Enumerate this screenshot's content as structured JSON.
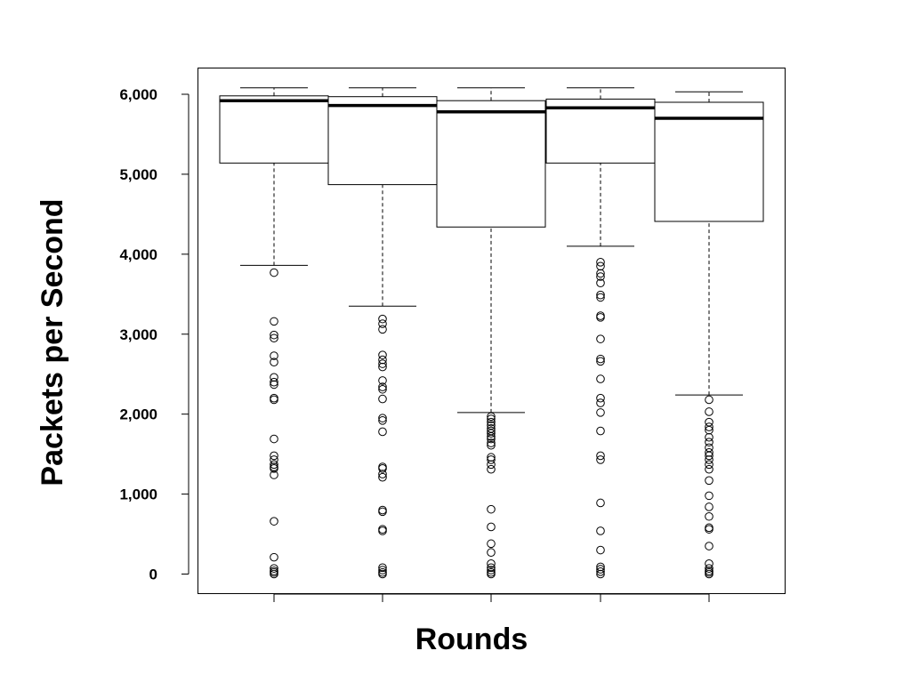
{
  "chart_data": {
    "type": "box",
    "title": "",
    "xlabel": "Rounds",
    "ylabel": "Packets per Second",
    "ylim": [
      -250,
      6350
    ],
    "y_ticks": [
      0,
      1000,
      2000,
      3000,
      4000,
      5000,
      6000
    ],
    "y_tick_labels": [
      "0",
      "1,000",
      "2,000",
      "3,000",
      "4,000",
      "5,000",
      "6,000"
    ],
    "categories": [
      "",
      "",
      "",
      "",
      ""
    ],
    "boxes": [
      {
        "whisker_low": 3860,
        "q1": 5140,
        "median": 5920,
        "q3": 5980,
        "whisker_high": 6080,
        "outliers": [
          3770,
          3160,
          2990,
          2950,
          2730,
          2650,
          2460,
          2400,
          2370,
          2200,
          2180,
          1690,
          1480,
          1430,
          1370,
          1340,
          1320,
          1240,
          660,
          210,
          70,
          40,
          20,
          0
        ]
      },
      {
        "whisker_low": 3350,
        "q1": 4870,
        "median": 5860,
        "q3": 5970,
        "whisker_high": 6080,
        "outliers": [
          3190,
          3130,
          3060,
          2740,
          2680,
          2630,
          2590,
          2420,
          2340,
          2310,
          2190,
          1950,
          1920,
          1780,
          1340,
          1320,
          1250,
          1210,
          800,
          780,
          560,
          540,
          80,
          50,
          20,
          0
        ]
      },
      {
        "whisker_low": 2020,
        "q1": 4340,
        "median": 5780,
        "q3": 5920,
        "whisker_high": 6080,
        "outliers": [
          1970,
          1940,
          1900,
          1860,
          1820,
          1790,
          1760,
          1720,
          1690,
          1640,
          1610,
          1460,
          1430,
          1370,
          1310,
          810,
          590,
          380,
          270,
          130,
          80,
          50,
          20,
          0
        ]
      },
      {
        "whisker_low": 4100,
        "q1": 5140,
        "median": 5830,
        "q3": 5940,
        "whisker_high": 6080,
        "outliers": [
          3900,
          3850,
          3760,
          3720,
          3640,
          3490,
          3460,
          3230,
          3210,
          2940,
          2690,
          2660,
          2440,
          2200,
          2140,
          2020,
          1790,
          1480,
          1430,
          890,
          540,
          300,
          90,
          60,
          30,
          0
        ]
      },
      {
        "whisker_low": 2240,
        "q1": 4410,
        "median": 5700,
        "q3": 5900,
        "whisker_high": 6030,
        "outliers": [
          2180,
          2030,
          1900,
          1840,
          1800,
          1710,
          1650,
          1580,
          1520,
          1480,
          1430,
          1370,
          1310,
          1170,
          980,
          840,
          720,
          580,
          560,
          350,
          130,
          70,
          40,
          20,
          0
        ]
      }
    ],
    "grid": false,
    "legend": "none"
  }
}
